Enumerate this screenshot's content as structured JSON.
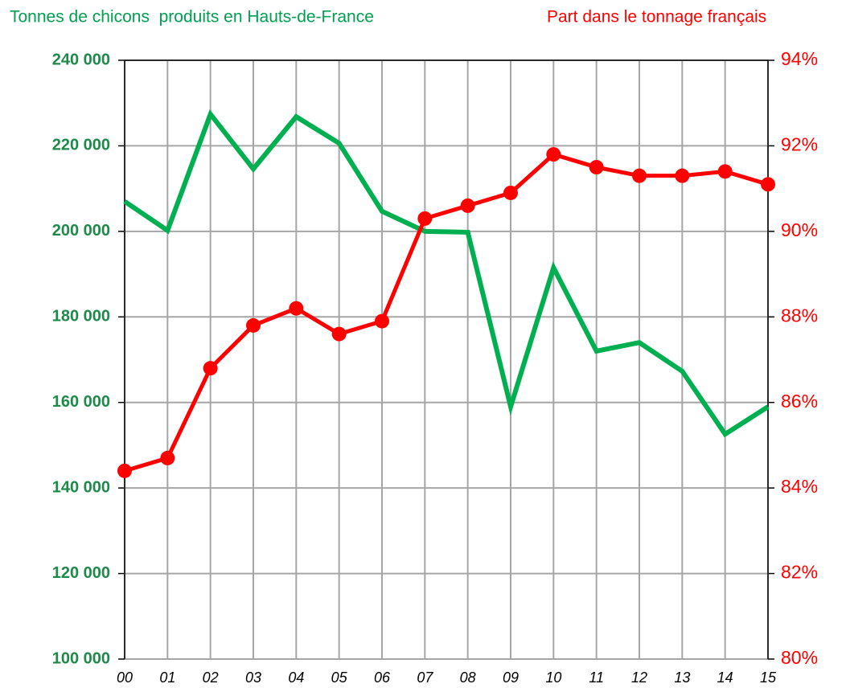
{
  "chart_data": {
    "type": "line",
    "title": "Tonnes de chicons  produits en Hauts-de-France",
    "y2_title": "Part dans le tonnage français",
    "categories": [
      "00",
      "01",
      "02",
      "03",
      "04",
      "05",
      "06",
      "07",
      "08",
      "09",
      "10",
      "11",
      "12",
      "13",
      "14",
      "15"
    ],
    "series": [
      {
        "name": "Tonnes de chicons  produits en Hauts-de-France",
        "color": "#00b050",
        "axis": "y",
        "values": [
          207000,
          200200,
          227400,
          214600,
          226800,
          220600,
          204700,
          200000,
          199800,
          159000,
          191500,
          172000,
          174000,
          167300,
          152600,
          159000
        ]
      },
      {
        "name": "Part dans le tonnage français",
        "color": "#ff0000",
        "axis": "y2",
        "markers": true,
        "values": [
          84.4,
          84.7,
          86.8,
          87.8,
          88.2,
          87.6,
          87.9,
          90.3,
          90.6,
          90.9,
          91.8,
          91.5,
          91.3,
          91.3,
          91.4,
          91.1
        ]
      }
    ],
    "ylim": [
      100000,
      240000
    ],
    "yticks": [
      {
        "value": 100000,
        "label": "100 000"
      },
      {
        "value": 120000,
        "label": "120 000"
      },
      {
        "value": 140000,
        "label": "140 000"
      },
      {
        "value": 160000,
        "label": "160 000"
      },
      {
        "value": 180000,
        "label": "180 000"
      },
      {
        "value": 200000,
        "label": "200 000"
      },
      {
        "value": 220000,
        "label": "220 000"
      },
      {
        "value": 240000,
        "label": "240 000"
      }
    ],
    "y2lim": [
      80,
      94
    ],
    "y2ticks": [
      {
        "value": 80,
        "label": "80%"
      },
      {
        "value": 82,
        "label": "82%"
      },
      {
        "value": 84,
        "label": "84%"
      },
      {
        "value": 86,
        "label": "86%"
      },
      {
        "value": 88,
        "label": "88%"
      },
      {
        "value": 90,
        "label": "90%"
      },
      {
        "value": 92,
        "label": "92%"
      },
      {
        "value": 94,
        "label": "94%"
      }
    ],
    "grid": true
  }
}
